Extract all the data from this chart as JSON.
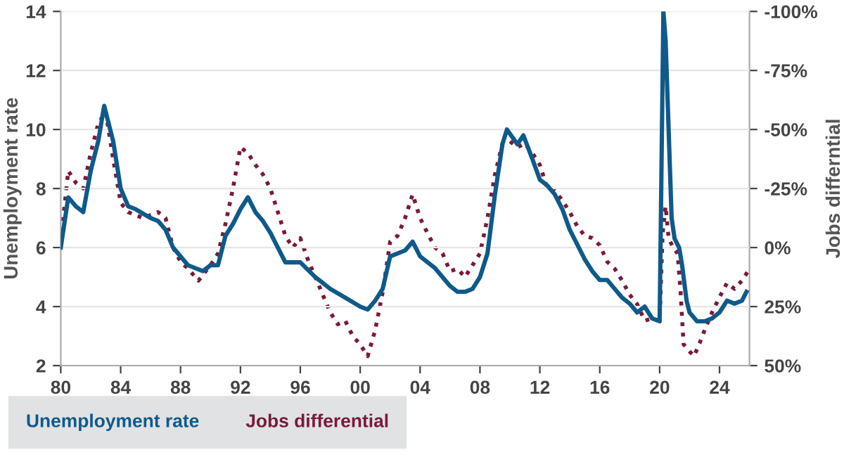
{
  "chart_data": {
    "type": "line",
    "ylabel": "Unemployment rate",
    "y2label": "Jobs differntial",
    "xlim": [
      1980,
      2026
    ],
    "xticks": [
      {
        "value": 1980,
        "label": "80"
      },
      {
        "value": 1984,
        "label": "84"
      },
      {
        "value": 1988,
        "label": "88"
      },
      {
        "value": 1992,
        "label": "92"
      },
      {
        "value": 1996,
        "label": "96"
      },
      {
        "value": 2000,
        "label": "00"
      },
      {
        "value": 2004,
        "label": "04"
      },
      {
        "value": 2008,
        "label": "08"
      },
      {
        "value": 2012,
        "label": "12"
      },
      {
        "value": 2016,
        "label": "16"
      },
      {
        "value": 2020,
        "label": "20"
      },
      {
        "value": 2024,
        "label": "24"
      }
    ],
    "ylim": [
      2,
      14
    ],
    "yticks": [
      2,
      4,
      6,
      8,
      10,
      12,
      14
    ],
    "y2lim": [
      50,
      -100
    ],
    "y2ticks": [
      {
        "value": -100,
        "label": "-100%"
      },
      {
        "value": -75,
        "label": "-75%"
      },
      {
        "value": -50,
        "label": "-50%"
      },
      {
        "value": -25,
        "label": "-25%"
      },
      {
        "value": 0,
        "label": "0%"
      },
      {
        "value": 25,
        "label": "25%"
      },
      {
        "value": 50,
        "label": "50%"
      }
    ],
    "grid": "y",
    "legend": "bottom",
    "series": [
      {
        "name": "Unemployment rate",
        "color": "#0e5a8a",
        "line_style": "solid",
        "x": [
          1980.0,
          1980.5,
          1981.0,
          1981.5,
          1982.0,
          1982.5,
          1982.9,
          1983.5,
          1984.0,
          1984.5,
          1985.0,
          1986.0,
          1986.5,
          1987.0,
          1987.5,
          1988.0,
          1988.5,
          1989.0,
          1989.5,
          1990.0,
          1990.5,
          1991.0,
          1991.5,
          1992.0,
          1992.5,
          1993.0,
          1993.5,
          1994.0,
          1994.5,
          1995.0,
          1996.0,
          1997.0,
          1997.5,
          1998.0,
          1999.0,
          2000.0,
          2000.5,
          2001.0,
          2001.5,
          2002.0,
          2003.0,
          2003.5,
          2004.0,
          2005.0,
          2006.0,
          2006.5,
          2007.0,
          2007.5,
          2008.0,
          2008.5,
          2009.0,
          2009.5,
          2009.8,
          2010.5,
          2010.9,
          2011.5,
          2012.0,
          2012.5,
          2013.0,
          2013.5,
          2014.0,
          2014.5,
          2015.0,
          2015.5,
          2016.0,
          2016.5,
          2017.0,
          2017.5,
          2018.0,
          2018.5,
          2019.0,
          2019.5,
          2020.0,
          2020.25,
          2020.4,
          2020.6,
          2020.8,
          2021.0,
          2021.3,
          2021.5,
          2021.8,
          2022.0,
          2022.5,
          2023.0,
          2023.5,
          2024.0,
          2024.5,
          2025.0,
          2025.5,
          2025.8
        ],
        "values": [
          6.0,
          7.7,
          7.4,
          7.2,
          8.6,
          9.6,
          10.8,
          9.6,
          8.0,
          7.4,
          7.3,
          7.0,
          6.9,
          6.6,
          6.0,
          5.7,
          5.4,
          5.3,
          5.2,
          5.4,
          5.4,
          6.4,
          6.8,
          7.3,
          7.7,
          7.2,
          6.9,
          6.5,
          6.0,
          5.5,
          5.5,
          5.0,
          4.8,
          4.6,
          4.3,
          4.0,
          3.9,
          4.2,
          4.6,
          5.7,
          5.9,
          6.2,
          5.7,
          5.3,
          4.7,
          4.5,
          4.5,
          4.6,
          5.0,
          5.8,
          7.8,
          9.5,
          10.0,
          9.5,
          9.8,
          9.0,
          8.3,
          8.1,
          7.8,
          7.3,
          6.6,
          6.1,
          5.6,
          5.2,
          4.9,
          4.9,
          4.6,
          4.3,
          4.1,
          3.8,
          4.0,
          3.6,
          3.5,
          14.0,
          13.0,
          10.0,
          7.0,
          6.3,
          6.0,
          5.4,
          4.2,
          3.8,
          3.5,
          3.5,
          3.6,
          3.8,
          4.2,
          4.1,
          4.2,
          4.5
        ]
      },
      {
        "name": "Jobs differential",
        "color": "#7a1a3a",
        "line_style": "dotted",
        "axis": "y2",
        "x": [
          1980.0,
          1980.5,
          1981.0,
          1981.5,
          1982.0,
          1982.5,
          1983.0,
          1983.5,
          1984.0,
          1984.5,
          1985.5,
          1986.5,
          1987.0,
          1987.5,
          1988.0,
          1988.5,
          1989.2,
          1990.0,
          1990.5,
          1991.0,
          1991.5,
          1992.0,
          1992.5,
          1993.0,
          1993.5,
          1994.0,
          1994.5,
          1995.0,
          1995.5,
          1996.0,
          1996.5,
          1997.0,
          1997.5,
          1998.0,
          1998.5,
          1999.0,
          1999.5,
          2000.0,
          2000.5,
          2001.0,
          2001.5,
          2002.0,
          2002.5,
          2003.0,
          2003.5,
          2004.0,
          2004.5,
          2005.0,
          2005.5,
          2006.0,
          2006.5,
          2007.0,
          2007.5,
          2008.0,
          2008.5,
          2009.0,
          2009.5,
          2010.0,
          2010.5,
          2011.0,
          2011.5,
          2012.0,
          2012.5,
          2013.0,
          2013.5,
          2014.0,
          2014.5,
          2015.0,
          2015.5,
          2016.0,
          2016.5,
          2017.0,
          2017.5,
          2018.0,
          2018.5,
          2019.0,
          2019.5,
          2020.0,
          2020.2,
          2020.4,
          2020.6,
          2020.9,
          2021.2,
          2021.4,
          2021.6,
          2022.0,
          2022.3,
          2022.7,
          2023.0,
          2023.5,
          2024.0,
          2024.5,
          2025.0,
          2025.5,
          2025.9
        ],
        "values": [
          -2.5,
          -32.5,
          -27.5,
          -25,
          -40,
          -52.5,
          -57.5,
          -37.5,
          -19,
          -15,
          -12.5,
          -15,
          -12.5,
          0,
          6,
          9,
          14,
          7.5,
          2.5,
          -10,
          -25,
          -42.5,
          -40,
          -35,
          -31,
          -25,
          -15,
          -5,
          0,
          -4,
          5,
          12.5,
          20,
          27.5,
          32.5,
          31,
          37.5,
          41,
          46,
          35,
          19,
          -2.5,
          -5,
          -12.5,
          -22.5,
          -12.5,
          -6,
          0,
          2.5,
          10,
          9,
          12.5,
          7.5,
          2.5,
          -12.5,
          -31,
          -44,
          -45,
          -42.5,
          -44,
          -40,
          -35,
          -25,
          -24,
          -20,
          -15,
          -9,
          -5,
          -4,
          -1,
          6,
          9,
          14,
          20,
          24,
          31,
          30,
          31,
          -6,
          -17.5,
          -4,
          0,
          2.5,
          19,
          41,
          44,
          46,
          40,
          35,
          27.5,
          21,
          15,
          17.5,
          14,
          10
        ]
      }
    ]
  }
}
